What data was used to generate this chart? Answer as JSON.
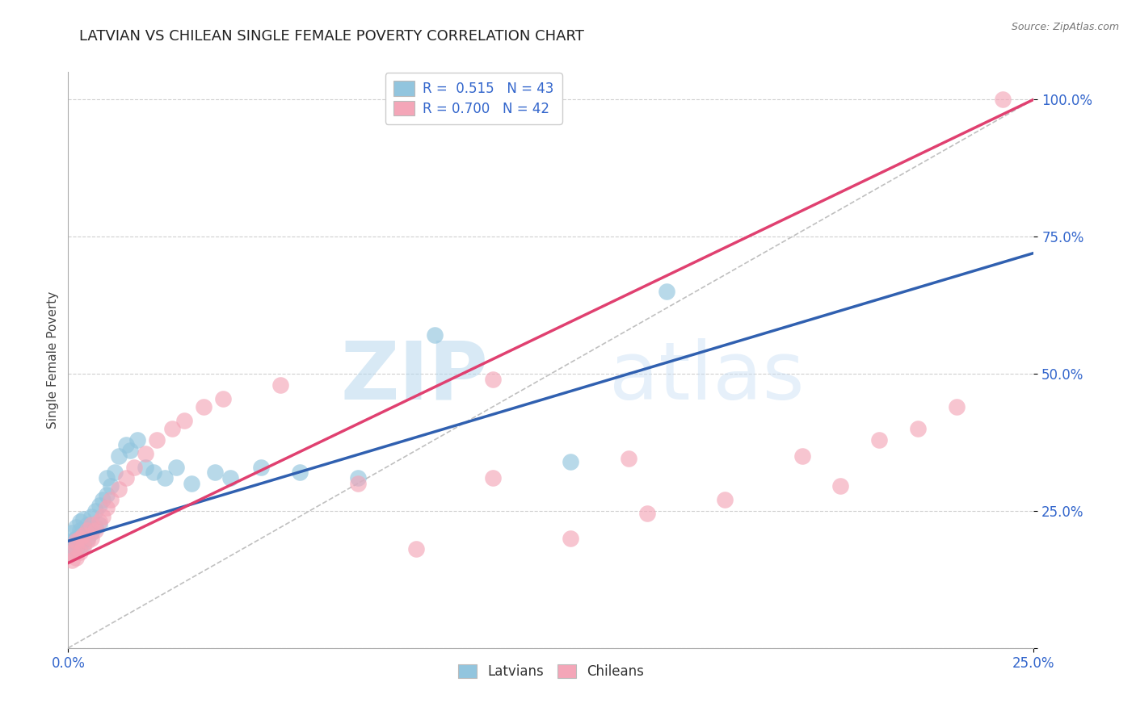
{
  "title": "LATVIAN VS CHILEAN SINGLE FEMALE POVERTY CORRELATION CHART",
  "source": "Source: ZipAtlas.com",
  "ylabel": "Single Female Poverty",
  "legend_latvians": "Latvians",
  "legend_chileans": "Chileans",
  "r_latvian": "0.515",
  "n_latvian": "43",
  "r_chilean": "0.700",
  "n_chilean": "42",
  "color_latvian": "#92c5de",
  "color_chilean": "#f4a6b8",
  "line_color_latvian": "#3060b0",
  "line_color_chilean": "#e04070",
  "diagonal_color": "#c0c0c0",
  "background_color": "#ffffff",
  "grid_color": "#d0d0d0",
  "watermark_color": "#d0e8f5",
  "xlim": [
    0.0,
    0.25
  ],
  "ylim": [
    0.0,
    1.05
  ],
  "latvian_x": [
    0.001,
    0.001,
    0.001,
    0.002,
    0.002,
    0.002,
    0.003,
    0.003,
    0.003,
    0.003,
    0.004,
    0.004,
    0.004,
    0.005,
    0.005,
    0.006,
    0.006,
    0.007,
    0.007,
    0.008,
    0.008,
    0.009,
    0.01,
    0.01,
    0.011,
    0.012,
    0.013,
    0.015,
    0.016,
    0.018,
    0.02,
    0.022,
    0.025,
    0.028,
    0.032,
    0.038,
    0.042,
    0.05,
    0.06,
    0.075,
    0.095,
    0.13,
    0.155
  ],
  "latvian_y": [
    0.175,
    0.195,
    0.21,
    0.18,
    0.2,
    0.22,
    0.185,
    0.205,
    0.215,
    0.23,
    0.19,
    0.215,
    0.235,
    0.2,
    0.225,
    0.21,
    0.24,
    0.22,
    0.25,
    0.225,
    0.26,
    0.27,
    0.28,
    0.31,
    0.295,
    0.32,
    0.35,
    0.37,
    0.36,
    0.38,
    0.33,
    0.32,
    0.31,
    0.33,
    0.3,
    0.32,
    0.31,
    0.33,
    0.32,
    0.31,
    0.57,
    0.34,
    0.65
  ],
  "chilean_x": [
    0.001,
    0.001,
    0.002,
    0.002,
    0.002,
    0.003,
    0.003,
    0.004,
    0.004,
    0.005,
    0.005,
    0.006,
    0.006,
    0.007,
    0.008,
    0.009,
    0.01,
    0.011,
    0.013,
    0.015,
    0.017,
    0.02,
    0.023,
    0.027,
    0.03,
    0.035,
    0.04,
    0.055,
    0.075,
    0.09,
    0.11,
    0.13,
    0.15,
    0.17,
    0.19,
    0.21,
    0.22,
    0.23,
    0.11,
    0.145,
    0.2,
    0.242
  ],
  "chilean_y": [
    0.16,
    0.175,
    0.165,
    0.185,
    0.195,
    0.175,
    0.2,
    0.185,
    0.205,
    0.195,
    0.215,
    0.2,
    0.225,
    0.215,
    0.23,
    0.24,
    0.255,
    0.27,
    0.29,
    0.31,
    0.33,
    0.355,
    0.38,
    0.4,
    0.415,
    0.44,
    0.455,
    0.48,
    0.3,
    0.18,
    0.31,
    0.2,
    0.245,
    0.27,
    0.35,
    0.38,
    0.4,
    0.44,
    0.49,
    0.345,
    0.295,
    1.0
  ],
  "line_lv_x0": 0.0,
  "line_lv_y0": 0.195,
  "line_lv_x1": 0.25,
  "line_lv_y1": 0.72,
  "line_ch_x0": 0.0,
  "line_ch_y0": 0.155,
  "line_ch_x1": 0.25,
  "line_ch_y1": 1.0,
  "watermark_zip": "ZIP",
  "watermark_atlas": "atlas",
  "title_fontsize": 13,
  "axis_label_fontsize": 11,
  "tick_fontsize": 11,
  "legend_fontsize": 12
}
